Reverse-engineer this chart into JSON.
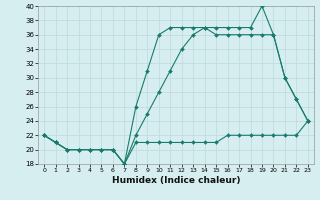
{
  "xlabel": "Humidex (Indice chaleur)",
  "ylabel": "",
  "background_color": "#d6eef0",
  "line_color": "#1a7a6e",
  "grid_color": "#c0dde0",
  "xlim": [
    -0.5,
    23.5
  ],
  "ylim": [
    18,
    40
  ],
  "xticks": [
    0,
    1,
    2,
    3,
    4,
    5,
    6,
    7,
    8,
    9,
    10,
    11,
    12,
    13,
    14,
    15,
    16,
    17,
    18,
    19,
    20,
    21,
    22,
    23
  ],
  "yticks": [
    18,
    20,
    22,
    24,
    26,
    28,
    30,
    32,
    34,
    36,
    38,
    40
  ],
  "series": [
    {
      "x": [
        0,
        1,
        2,
        3,
        4,
        5,
        6,
        7,
        8,
        9,
        10,
        11,
        12,
        13,
        14,
        15,
        16,
        17,
        18,
        19,
        20,
        21,
        22,
        23
      ],
      "y": [
        22,
        21,
        20,
        20,
        20,
        20,
        20,
        18,
        21,
        21,
        21,
        21,
        21,
        21,
        21,
        21,
        22,
        22,
        22,
        22,
        22,
        22,
        22,
        24
      ]
    },
    {
      "x": [
        0,
        1,
        2,
        3,
        4,
        5,
        6,
        7,
        8,
        9,
        10,
        11,
        12,
        13,
        14,
        15,
        16,
        17,
        18,
        19,
        20,
        21,
        22,
        23
      ],
      "y": [
        22,
        21,
        20,
        20,
        20,
        20,
        20,
        18,
        22,
        25,
        28,
        31,
        34,
        36,
        37,
        36,
        36,
        36,
        36,
        36,
        36,
        30,
        27,
        24
      ]
    },
    {
      "x": [
        0,
        1,
        2,
        3,
        4,
        5,
        6,
        7,
        8,
        9,
        10,
        11,
        12,
        13,
        14,
        15,
        16,
        17,
        18,
        19,
        20,
        21,
        22,
        23
      ],
      "y": [
        22,
        21,
        20,
        20,
        20,
        20,
        20,
        18,
        26,
        31,
        36,
        37,
        37,
        37,
        37,
        37,
        37,
        37,
        37,
        40,
        36,
        30,
        27,
        24
      ]
    }
  ]
}
